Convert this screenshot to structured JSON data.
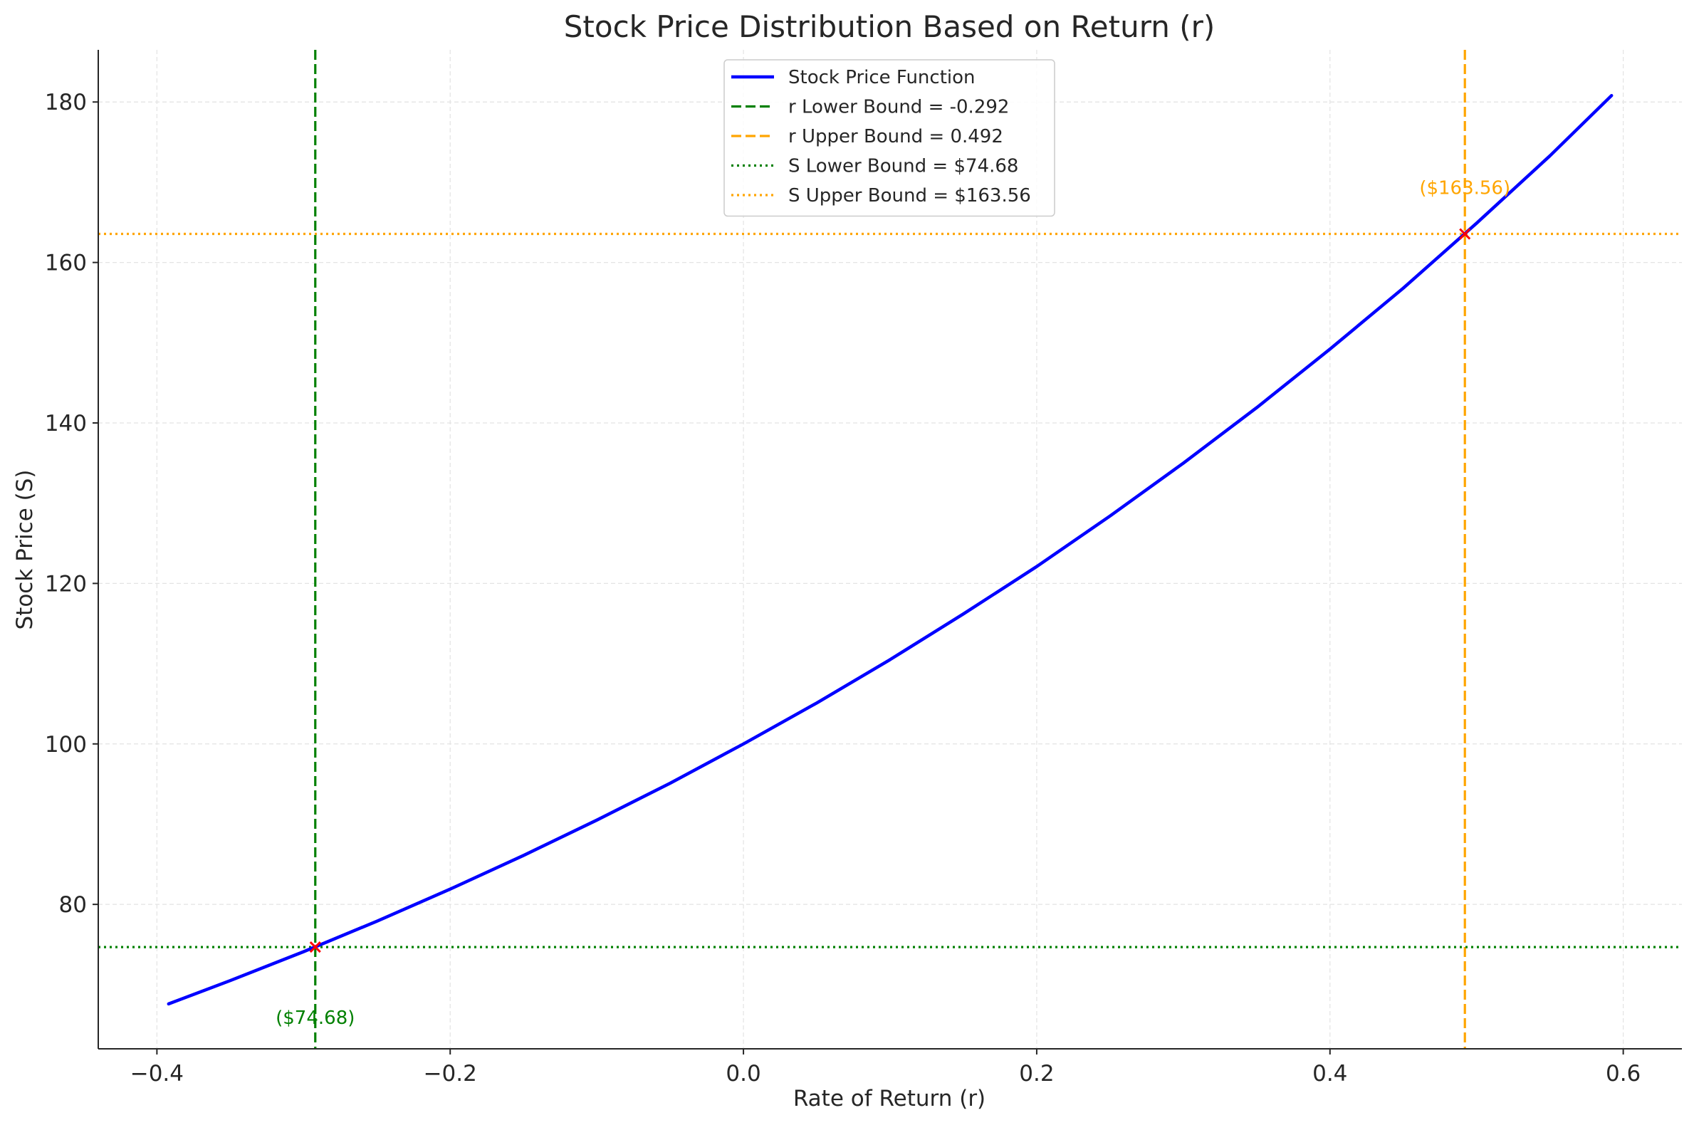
{
  "chart_data": {
    "type": "line",
    "title": "Stock Price Distribution Based on Return (r)",
    "xlabel": "Rate of Return (r)",
    "ylabel": "Stock Price (S)",
    "xlim": [
      -0.44,
      0.64
    ],
    "ylim": [
      62,
      186.5
    ],
    "xticks": [
      -0.4,
      -0.2,
      0.0,
      0.2,
      0.4,
      0.6
    ],
    "xtick_labels": [
      "−0.4",
      "−0.2",
      "0.0",
      "0.2",
      "0.4",
      "0.6"
    ],
    "yticks": [
      80,
      100,
      120,
      140,
      160,
      180
    ],
    "ytick_labels": [
      "80",
      "100",
      "120",
      "140",
      "160",
      "180"
    ],
    "grid": true,
    "legend_position": "top-center",
    "series": [
      {
        "name": "Stock Price Function",
        "color": "#0000ff",
        "style": "solid",
        "x": [
          -0.392,
          -0.35,
          -0.3,
          -0.25,
          -0.2,
          -0.15,
          -0.1,
          -0.05,
          0.0,
          0.05,
          0.1,
          0.15,
          0.2,
          0.25,
          0.3,
          0.35,
          0.4,
          0.45,
          0.5,
          0.55,
          0.592
        ],
        "y": [
          67.6,
          70.5,
          74.1,
          77.9,
          81.9,
          86.1,
          90.5,
          95.1,
          100.0,
          105.1,
          110.5,
          116.2,
          122.1,
          128.4,
          135.0,
          141.9,
          149.2,
          156.8,
          164.9,
          173.3,
          180.8
        ]
      }
    ],
    "reference_lines": [
      {
        "name": "r Lower Bound = -0.292",
        "orientation": "vertical",
        "value": -0.292,
        "color": "#008000",
        "style": "dashed"
      },
      {
        "name": "r Upper Bound = 0.492",
        "orientation": "vertical",
        "value": 0.492,
        "color": "#ffa500",
        "style": "dashed"
      },
      {
        "name": "S Lower Bound = $74.68",
        "orientation": "horizontal",
        "value": 74.68,
        "color": "#008000",
        "style": "dotted"
      },
      {
        "name": "S Upper Bound = $163.56",
        "orientation": "horizontal",
        "value": 163.56,
        "color": "#ffa500",
        "style": "dotted"
      }
    ],
    "markers": [
      {
        "x": -0.292,
        "y": 74.68,
        "color": "#ff0000",
        "symbol": "x"
      },
      {
        "x": 0.492,
        "y": 163.56,
        "color": "#ff0000",
        "symbol": "x"
      }
    ],
    "annotations": [
      {
        "text": "($74.68)",
        "x": -0.292,
        "y": 74.68,
        "color": "#008000",
        "placement": "below"
      },
      {
        "text": "($163.56)",
        "x": 0.492,
        "y": 163.56,
        "color": "#ffa500",
        "placement": "above"
      }
    ]
  }
}
